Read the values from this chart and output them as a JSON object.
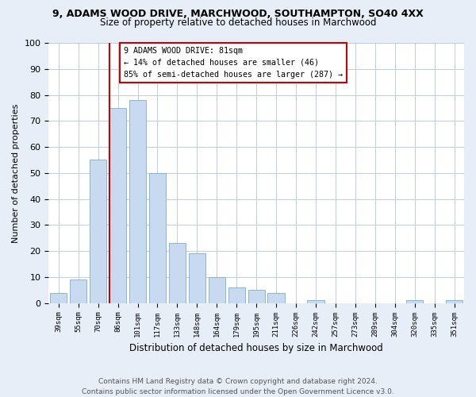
{
  "title_line1": "9, ADAMS WOOD DRIVE, MARCHWOOD, SOUTHAMPTON, SO40 4XX",
  "title_line2": "Size of property relative to detached houses in Marchwood",
  "xlabel": "Distribution of detached houses by size in Marchwood",
  "ylabel": "Number of detached properties",
  "bar_labels": [
    "39sqm",
    "55sqm",
    "70sqm",
    "86sqm",
    "101sqm",
    "117sqm",
    "133sqm",
    "148sqm",
    "164sqm",
    "179sqm",
    "195sqm",
    "211sqm",
    "226sqm",
    "242sqm",
    "257sqm",
    "273sqm",
    "289sqm",
    "304sqm",
    "320sqm",
    "335sqm",
    "351sqm"
  ],
  "bar_values": [
    4,
    9,
    55,
    75,
    78,
    50,
    23,
    19,
    10,
    6,
    5,
    4,
    0,
    1,
    0,
    0,
    0,
    0,
    1,
    0,
    1
  ],
  "bar_color": "#c8daf0",
  "bar_edge_color": "#7aafd4",
  "vline_x": 3.0,
  "vline_color": "#cc0000",
  "annotation_text": "9 ADAMS WOOD DRIVE: 81sqm\n← 14% of detached houses are smaller (46)\n85% of semi-detached houses are larger (287) →",
  "annotation_box_color": "#cc0000",
  "ylim": [
    0,
    100
  ],
  "yticks": [
    0,
    10,
    20,
    30,
    40,
    50,
    60,
    70,
    80,
    90,
    100
  ],
  "footnote": "Contains HM Land Registry data © Crown copyright and database right 2024.\nContains public sector information licensed under the Open Government Licence v3.0.",
  "background_color": "#e8eef7",
  "plot_bg_color": "#ffffff",
  "grid_color": "#c0cce0",
  "title1_fontsize": 9,
  "title2_fontsize": 8.5,
  "footnote_fontsize": 6.5
}
